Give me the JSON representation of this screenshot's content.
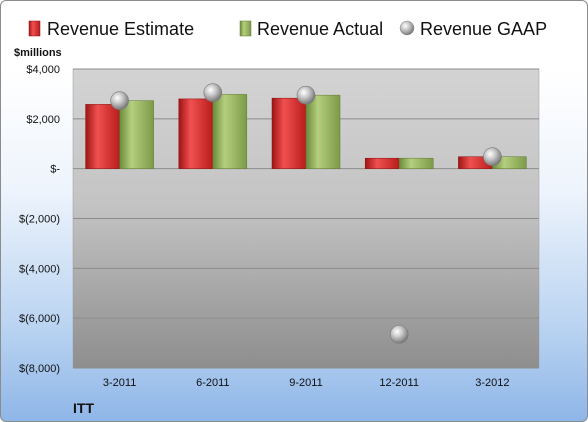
{
  "chart_data": {
    "type": "bar",
    "company": "ITT",
    "unit_label": "$millions",
    "categories": [
      "3-2011",
      "6-2011",
      "9-2011",
      "12-2011",
      "3-2012"
    ],
    "series": [
      {
        "name": "Revenue Estimate",
        "type": "bar",
        "color": "#d62f2f",
        "values": [
          2580,
          2800,
          2830,
          420,
          480
        ]
      },
      {
        "name": "Revenue Actual",
        "type": "bar",
        "color": "#8faf58",
        "values": [
          2730,
          2980,
          2950,
          420,
          480
        ]
      },
      {
        "name": "Revenue GAAP",
        "type": "scatter",
        "color": "#b0b0b0",
        "values": [
          2730,
          3050,
          2950,
          -6650,
          480
        ]
      }
    ],
    "y_ticks": [
      {
        "value": 4000,
        "label": "$4,000"
      },
      {
        "value": 2000,
        "label": "$2,000"
      },
      {
        "value": 0,
        "label": "$-"
      },
      {
        "value": -2000,
        "label": "$(2,000)"
      },
      {
        "value": -4000,
        "label": "$(4,000)"
      },
      {
        "value": -6000,
        "label": "$(6,000)"
      },
      {
        "value": -8000,
        "label": "$(8,000)"
      }
    ],
    "ylim": [
      -8000,
      4000
    ],
    "legend_position": "top",
    "grid": true
  }
}
